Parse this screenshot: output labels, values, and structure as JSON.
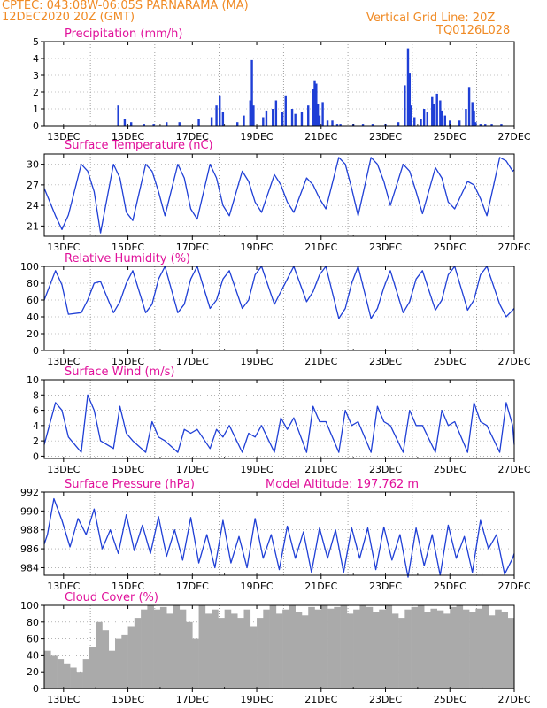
{
  "header": {
    "line1_left": "CPTEC:   043:08W-06:05S  PARNARAMA (MA)",
    "line2_left": "12DEC2020 20Z (GMT)",
    "line1_right": "Vertical Grid Line: 20Z",
    "line2_right": "TQ0126L028"
  },
  "colors": {
    "title": "#e0109a",
    "header": "#f08a24",
    "line": "#1f3fd6",
    "cloud": "#aaaaaa",
    "grid": "#888888"
  },
  "chart_data": [
    {
      "type": "bar",
      "title": "Precipitation (mm/h)",
      "ylim": [
        0,
        5
      ],
      "yticks": [
        0,
        1,
        2,
        3,
        4,
        5
      ],
      "xlim_days": [
        12.4,
        27
      ],
      "xticks": [
        "13DEC",
        "15DEC",
        "17DEC",
        "19DEC",
        "21DEC",
        "23DEC",
        "25DEC",
        "27DEC"
      ],
      "x": [
        14.7,
        14.9,
        15.1,
        15.5,
        15.8,
        16.2,
        16.6,
        17.2,
        17.6,
        17.75,
        17.85,
        17.95,
        18.4,
        18.6,
        18.8,
        18.85,
        18.9,
        19.2,
        19.3,
        19.5,
        19.6,
        19.8,
        19.9,
        20.1,
        20.2,
        20.4,
        20.6,
        20.75,
        20.8,
        20.85,
        20.9,
        20.95,
        21.05,
        21.2,
        21.35,
        21.5,
        21.6,
        22.0,
        22.3,
        22.6,
        23.0,
        23.4,
        23.6,
        23.7,
        23.75,
        23.8,
        23.9,
        24.1,
        24.2,
        24.3,
        24.45,
        24.5,
        24.6,
        24.7,
        24.75,
        24.85,
        25.0,
        25.3,
        25.5,
        25.6,
        25.7,
        25.75,
        25.8,
        25.95,
        26.1,
        26.3,
        26.6
      ],
      "values": [
        1.2,
        0.4,
        0.2,
        0.1,
        0.1,
        0.2,
        0.2,
        0.4,
        0.5,
        1.2,
        1.8,
        0.8,
        0.2,
        0.6,
        1.5,
        3.9,
        1.2,
        0.5,
        0.9,
        1.0,
        1.5,
        0.8,
        1.8,
        1.0,
        0.7,
        0.8,
        1.2,
        2.2,
        2.7,
        2.5,
        1.3,
        0.6,
        1.4,
        0.3,
        0.3,
        0.1,
        0.1,
        0.1,
        0.1,
        0.1,
        0.1,
        0.2,
        2.4,
        4.6,
        3.1,
        1.2,
        0.5,
        0.4,
        1.0,
        0.8,
        1.7,
        1.3,
        1.9,
        1.5,
        0.9,
        0.6,
        0.3,
        0.3,
        1.0,
        2.3,
        1.4,
        0.9,
        0.2,
        0.1,
        0.1,
        0.1,
        0.1
      ]
    },
    {
      "type": "line",
      "title": "Surface Temperature (nC)",
      "ylim": [
        19.5,
        31.5
      ],
      "yticks": [
        21,
        24,
        27,
        30
      ],
      "xlim_days": [
        12.4,
        27
      ],
      "xticks": [
        "13DEC",
        "15DEC",
        "17DEC",
        "19DEC",
        "21DEC",
        "23DEC",
        "25DEC",
        "27DEC"
      ],
      "x": [
        12.4,
        12.75,
        12.95,
        13.15,
        13.55,
        13.75,
        13.95,
        14.15,
        14.55,
        14.75,
        14.95,
        15.15,
        15.55,
        15.75,
        15.95,
        16.15,
        16.55,
        16.75,
        16.95,
        17.15,
        17.55,
        17.75,
        17.95,
        18.15,
        18.55,
        18.75,
        18.95,
        19.15,
        19.55,
        19.75,
        19.95,
        20.15,
        20.55,
        20.75,
        20.95,
        21.15,
        21.55,
        21.75,
        21.95,
        22.15,
        22.55,
        22.75,
        22.95,
        23.15,
        23.55,
        23.75,
        23.95,
        24.15,
        24.55,
        24.75,
        24.95,
        25.15,
        25.55,
        25.75,
        25.95,
        26.15,
        26.55,
        26.75,
        26.95,
        27.0
      ],
      "values": [
        26.5,
        22.5,
        20.5,
        22.6,
        30.0,
        29.0,
        26.0,
        20.0,
        30.0,
        28.0,
        23.0,
        21.8,
        30.0,
        29.0,
        26.0,
        22.5,
        30.0,
        28.0,
        23.5,
        22.0,
        30.0,
        28.0,
        24.0,
        22.5,
        29.0,
        27.5,
        24.5,
        23.0,
        28.5,
        27.0,
        24.5,
        23.0,
        28.0,
        27.0,
        25.0,
        23.5,
        31.0,
        30.0,
        26.5,
        22.5,
        31.0,
        30.0,
        27.5,
        24.0,
        30.0,
        29.0,
        26.0,
        22.8,
        29.5,
        28.0,
        24.5,
        23.5,
        27.5,
        27.0,
        25.0,
        22.5,
        31.0,
        30.5,
        29.0,
        29.2
      ]
    },
    {
      "type": "line",
      "title": "Relative Humidity (%)",
      "ylim": [
        0,
        100
      ],
      "yticks": [
        0,
        20,
        40,
        60,
        80,
        100
      ],
      "xlim_days": [
        12.4,
        27
      ],
      "xticks": [
        "13DEC",
        "15DEC",
        "17DEC",
        "19DEC",
        "21DEC",
        "23DEC",
        "25DEC",
        "27DEC"
      ],
      "x": [
        12.4,
        12.75,
        12.95,
        13.15,
        13.55,
        13.75,
        13.95,
        14.15,
        14.55,
        14.75,
        14.95,
        15.15,
        15.55,
        15.75,
        15.95,
        16.15,
        16.55,
        16.75,
        16.95,
        17.15,
        17.55,
        17.75,
        17.95,
        18.15,
        18.55,
        18.75,
        18.95,
        19.15,
        19.55,
        19.75,
        19.95,
        20.15,
        20.55,
        20.75,
        20.95,
        21.15,
        21.55,
        21.75,
        21.95,
        22.15,
        22.55,
        22.75,
        22.95,
        23.15,
        23.55,
        23.75,
        23.95,
        24.15,
        24.55,
        24.75,
        24.95,
        25.15,
        25.55,
        25.75,
        25.95,
        26.15,
        26.55,
        26.75,
        26.95,
        27.0
      ],
      "values": [
        60,
        95,
        78,
        43,
        45,
        60,
        80,
        82,
        45,
        58,
        80,
        95,
        45,
        55,
        85,
        100,
        45,
        55,
        85,
        100,
        50,
        60,
        85,
        95,
        50,
        60,
        90,
        100,
        55,
        70,
        85,
        100,
        58,
        70,
        90,
        100,
        38,
        50,
        80,
        100,
        38,
        50,
        75,
        95,
        45,
        58,
        85,
        95,
        48,
        60,
        90,
        100,
        48,
        60,
        90,
        100,
        55,
        40,
        48,
        50
      ]
    },
    {
      "type": "line",
      "title": "Surface Wind (m/s)",
      "ylim": [
        -0.3,
        10
      ],
      "yticks": [
        0,
        2,
        4,
        6,
        8,
        10
      ],
      "xlim_days": [
        12.4,
        27
      ],
      "xticks": [
        "13DEC",
        "15DEC",
        "17DEC",
        "19DEC",
        "21DEC",
        "23DEC",
        "25DEC",
        "27DEC"
      ],
      "x": [
        12.4,
        12.75,
        12.95,
        13.15,
        13.55,
        13.75,
        13.95,
        14.15,
        14.55,
        14.75,
        14.95,
        15.15,
        15.55,
        15.75,
        15.95,
        16.15,
        16.55,
        16.75,
        16.95,
        17.15,
        17.55,
        17.75,
        17.95,
        18.15,
        18.55,
        18.75,
        18.95,
        19.15,
        19.55,
        19.75,
        19.95,
        20.15,
        20.55,
        20.75,
        20.95,
        21.15,
        21.55,
        21.75,
        21.95,
        22.15,
        22.55,
        22.75,
        22.95,
        23.15,
        23.55,
        23.75,
        23.95,
        24.15,
        24.55,
        24.75,
        24.95,
        25.15,
        25.55,
        25.75,
        25.95,
        26.15,
        26.55,
        26.75,
        26.95,
        27.0
      ],
      "values": [
        1.5,
        7.0,
        6.0,
        2.5,
        0.5,
        8.0,
        6.0,
        2.0,
        1.0,
        6.5,
        3.0,
        2.0,
        0.5,
        4.5,
        2.5,
        2.0,
        0.5,
        3.5,
        3.0,
        3.5,
        1.0,
        3.5,
        2.5,
        4.0,
        0.5,
        3.0,
        2.5,
        4.0,
        0.5,
        5.0,
        3.5,
        5.0,
        0.5,
        6.5,
        4.5,
        4.5,
        0.5,
        6.0,
        4.0,
        4.5,
        0.5,
        6.5,
        4.5,
        4.0,
        0.5,
        6.0,
        4.0,
        4.0,
        0.5,
        6.0,
        4.0,
        4.5,
        0.5,
        7.0,
        4.5,
        4.0,
        0.5,
        7.0,
        4.0,
        1.5
      ]
    },
    {
      "type": "line",
      "title": "Surface Pressure (hPa)",
      "annotation": "Model Altitude: 197.762 m",
      "ylim": [
        983.2,
        992
      ],
      "yticks": [
        984,
        986,
        988,
        990,
        992
      ],
      "xlim_days": [
        12.4,
        27
      ],
      "xticks": [
        "13DEC",
        "15DEC",
        "17DEC",
        "19DEC",
        "21DEC",
        "23DEC",
        "25DEC",
        "27DEC"
      ],
      "x": [
        12.4,
        12.5,
        12.7,
        12.95,
        13.2,
        13.45,
        13.7,
        13.95,
        14.2,
        14.45,
        14.7,
        14.95,
        15.2,
        15.45,
        15.7,
        15.95,
        16.2,
        16.45,
        16.7,
        16.95,
        17.2,
        17.45,
        17.7,
        17.95,
        18.2,
        18.45,
        18.7,
        18.95,
        19.2,
        19.45,
        19.7,
        19.95,
        20.2,
        20.45,
        20.7,
        20.95,
        21.2,
        21.45,
        21.7,
        21.95,
        22.2,
        22.45,
        22.7,
        22.95,
        23.2,
        23.45,
        23.7,
        23.95,
        24.2,
        24.45,
        24.7,
        24.95,
        25.2,
        25.45,
        25.7,
        25.95,
        26.2,
        26.45,
        26.7,
        26.95,
        27.0
      ],
      "values": [
        986.5,
        987.5,
        991.3,
        989.0,
        986.2,
        989.2,
        987.5,
        990.2,
        986.0,
        988.0,
        985.5,
        989.6,
        985.8,
        988.5,
        985.5,
        989.4,
        985.2,
        988.0,
        984.8,
        989.3,
        984.5,
        987.5,
        984.0,
        989.0,
        984.5,
        987.3,
        984.0,
        989.2,
        985.0,
        987.5,
        983.8,
        988.4,
        985.0,
        987.8,
        983.5,
        988.2,
        985.0,
        988.0,
        983.5,
        988.2,
        985.0,
        988.2,
        983.8,
        988.3,
        984.8,
        987.5,
        983.0,
        988.2,
        984.2,
        987.5,
        983.2,
        988.5,
        985.0,
        987.3,
        983.5,
        989.0,
        986.0,
        987.5,
        983.3,
        985.0,
        985.5
      ]
    },
    {
      "type": "area",
      "title": "Cloud Cover (%)",
      "ylim": [
        0,
        100
      ],
      "yticks": [
        0,
        20,
        40,
        60,
        80,
        100
      ],
      "xlim_days": [
        12.4,
        27
      ],
      "xticks": [
        "13DEC",
        "15DEC",
        "17DEC",
        "19DEC",
        "21DEC",
        "23DEC",
        "25DEC",
        "27DEC"
      ],
      "x": [
        12.4,
        12.6,
        12.8,
        13.0,
        13.2,
        13.4,
        13.6,
        13.8,
        14.0,
        14.2,
        14.4,
        14.6,
        14.8,
        15.0,
        15.2,
        15.4,
        15.6,
        15.8,
        16.0,
        16.2,
        16.4,
        16.6,
        16.8,
        17.0,
        17.2,
        17.4,
        17.6,
        17.8,
        18.0,
        18.2,
        18.4,
        18.6,
        18.8,
        19.0,
        19.2,
        19.4,
        19.6,
        19.8,
        20.0,
        20.2,
        20.4,
        20.6,
        20.8,
        21.0,
        21.2,
        21.4,
        21.6,
        21.8,
        22.0,
        22.2,
        22.4,
        22.6,
        22.8,
        23.0,
        23.2,
        23.4,
        23.6,
        23.8,
        24.0,
        24.2,
        24.4,
        24.6,
        24.8,
        25.0,
        25.2,
        25.4,
        25.6,
        25.8,
        26.0,
        26.2,
        26.4,
        26.6,
        26.8,
        27.0
      ],
      "values": [
        45,
        40,
        35,
        30,
        25,
        20,
        35,
        50,
        80,
        70,
        45,
        60,
        65,
        75,
        85,
        95,
        100,
        95,
        98,
        90,
        100,
        95,
        80,
        60,
        100,
        90,
        95,
        85,
        95,
        90,
        85,
        95,
        75,
        85,
        95,
        100,
        90,
        95,
        100,
        92,
        88,
        98,
        95,
        100,
        96,
        98,
        100,
        90,
        95,
        100,
        98,
        92,
        95,
        100,
        90,
        85,
        95,
        98,
        100,
        92,
        96,
        94,
        90,
        98,
        100,
        95,
        92,
        96,
        100,
        88,
        95,
        92,
        85,
        88
      ]
    }
  ]
}
